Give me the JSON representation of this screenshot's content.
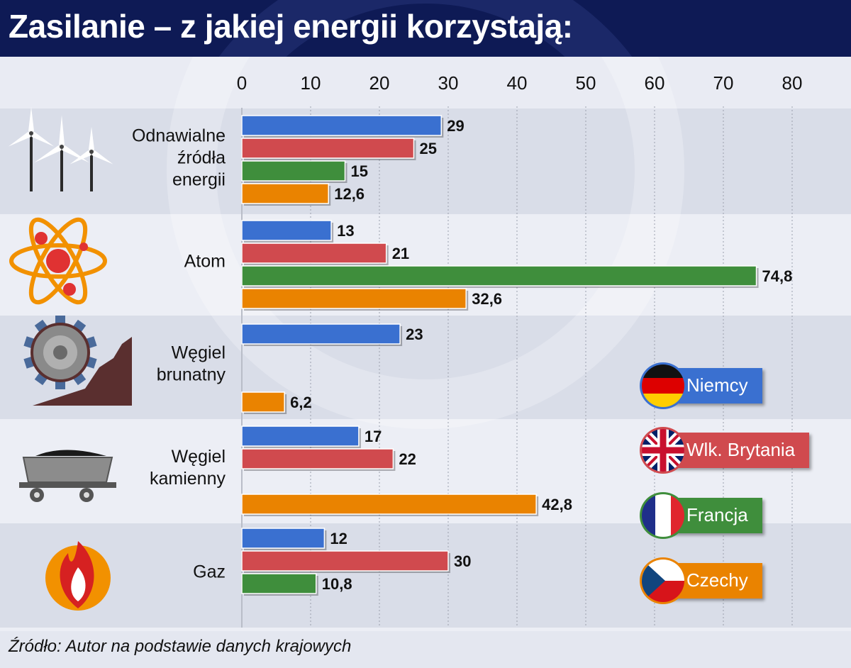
{
  "title": "Zasilanie – z jakiej energii korzystają:",
  "source": "Źródło: Autor na podstawie danych krajowych",
  "chart_data": {
    "type": "bar",
    "orientation": "horizontal",
    "title": "Zasilanie – z jakiej energii korzystają:",
    "xlim": [
      0,
      80
    ],
    "x_ticks": [
      "0",
      "10",
      "20",
      "30",
      "40",
      "50",
      "60",
      "70",
      "80"
    ],
    "grid": "vertical dotted",
    "legend_position": "right",
    "categories": [
      {
        "label": [
          "Odnawialne",
          "źródła",
          "energii"
        ],
        "icon": "wind-turbines-icon"
      },
      {
        "label": [
          "Atom"
        ],
        "icon": "atom-icon"
      },
      {
        "label": [
          "Węgiel",
          "brunatny"
        ],
        "icon": "bucket-wheel-excavator-icon"
      },
      {
        "label": [
          "Węgiel",
          "kamienny"
        ],
        "icon": "coal-cart-icon"
      },
      {
        "label": [
          "Gaz"
        ],
        "icon": "gas-flame-icon"
      }
    ],
    "series": [
      {
        "name": "Niemcy",
        "color": "#3a70d0",
        "flag": "germany-flag-icon",
        "values": [
          29,
          13,
          23,
          17,
          12
        ],
        "labels": [
          "29",
          "13",
          "23",
          "17",
          "12"
        ]
      },
      {
        "name": "Wlk. Brytania",
        "color": "#d04a4e",
        "flag": "uk-flag-icon",
        "values": [
          25,
          21,
          null,
          22,
          30
        ],
        "labels": [
          "25",
          "21",
          "",
          "22",
          "30"
        ]
      },
      {
        "name": "Francja",
        "color": "#3f8e3c",
        "flag": "france-flag-icon",
        "values": [
          15,
          74.8,
          null,
          null,
          10.8
        ],
        "labels": [
          "15",
          "74,8",
          "",
          "",
          "10,8"
        ]
      },
      {
        "name": "Czechy",
        "color": "#ea8300",
        "flag": "czech-flag-icon",
        "values": [
          12.6,
          32.6,
          6.2,
          42.8,
          null
        ],
        "labels": [
          "12,6",
          "32,6",
          "6,2",
          "42,8",
          ""
        ]
      }
    ]
  },
  "colors": {
    "title_background": "#0e1a55",
    "band_dark": "#d9dde8",
    "band_light": "#eceef5"
  }
}
